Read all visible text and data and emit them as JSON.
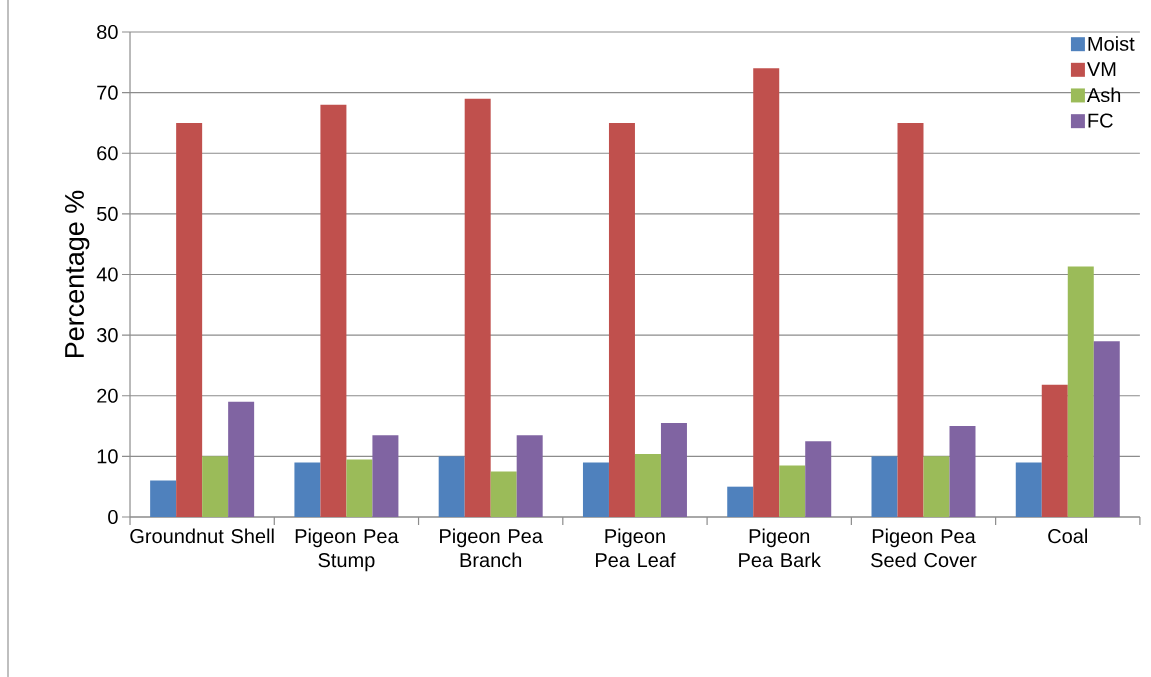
{
  "chart_data": {
    "type": "bar",
    "ylabel": "Percentage %",
    "categories": [
      "Groundnut Shell",
      "Pigeon Pea Stump",
      "Pigeon Pea Branch",
      "Pigeon Pea Leaf",
      "Pigeon Pea Bark",
      "Pigeon Pea Seed Cover",
      "Coal"
    ],
    "series": [
      {
        "name": "Moist",
        "color": "#4f81bd",
        "values": [
          6,
          9,
          10,
          9,
          5,
          10,
          9
        ]
      },
      {
        "name": "VM",
        "color": "#c0504d",
        "values": [
          65,
          68,
          69,
          65,
          74,
          65,
          21.8
        ]
      },
      {
        "name": "Ash",
        "color": "#9bbb59",
        "values": [
          10,
          9.5,
          7.5,
          10.4,
          8.5,
          10,
          41.3
        ]
      },
      {
        "name": "FC",
        "color": "#8064a2",
        "values": [
          19,
          13.5,
          13.5,
          15.5,
          12.5,
          15,
          29
        ]
      }
    ],
    "ylim": [
      0,
      80
    ],
    "yticks": [
      0,
      10,
      20,
      30,
      40,
      50,
      60,
      70,
      80
    ],
    "grid": "y",
    "legend": "top right"
  }
}
